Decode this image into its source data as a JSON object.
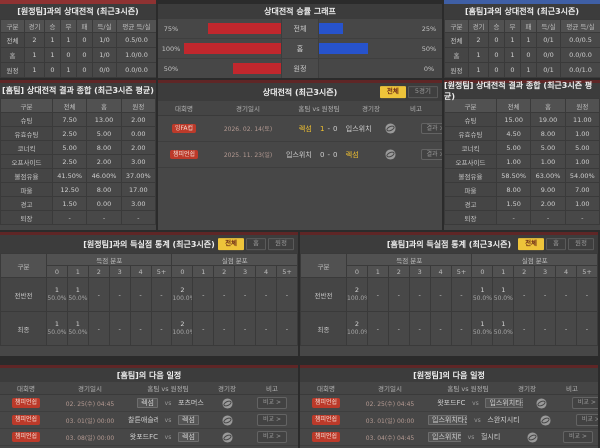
{
  "meta": {
    "vs_label": "vs",
    "score_sep": "-"
  },
  "chart_data": {
    "type": "bar",
    "title": "상대전적 승률 그래프",
    "categories": [
      "전체",
      "홈",
      "원정"
    ],
    "series": [
      {
        "name": "홈팀 승률",
        "color": "#c1272d",
        "values": [
          75,
          100,
          50
        ]
      },
      {
        "name": "원정팀 승률",
        "color": "#2753cc",
        "values": [
          25,
          50,
          0
        ]
      }
    ],
    "value_suffix": "%",
    "xlim": [
      0,
      100
    ],
    "legend_position": "none",
    "grid": false
  },
  "panels": {
    "record_vs_away": {
      "title": "[원정팀]과의 상대전적 (최근3시즌)",
      "accent": "#8e3232",
      "columns": [
        "구분",
        "경기",
        "승",
        "무",
        "패",
        "득/실",
        "평균 득/실"
      ],
      "rows": [
        [
          "전체",
          "2",
          "1",
          "1",
          "0",
          "1/0",
          "0.5/0.0"
        ],
        [
          "홈",
          "1",
          "1",
          "0",
          "0",
          "1/0",
          "1.0/0.0"
        ],
        [
          "원정",
          "1",
          "0",
          "1",
          "0",
          "0/0",
          "0.0/0.0"
        ]
      ]
    },
    "record_vs_home": {
      "title": "[홈팀]과의 상대전적 (최근3시즌)",
      "accent": "#3f5fa5",
      "columns": [
        "구분",
        "경기",
        "승",
        "무",
        "패",
        "득/실",
        "평균 득/실"
      ],
      "rows": [
        [
          "전체",
          "2",
          "0",
          "1",
          "1",
          "0/1",
          "0.0/0.5"
        ],
        [
          "홈",
          "1",
          "0",
          "1",
          "0",
          "0/0",
          "0.0/0.0"
        ],
        [
          "원정",
          "1",
          "0",
          "0",
          "1",
          "0/1",
          "0.0/1.0"
        ]
      ]
    },
    "summary_home": {
      "title": "[홈팀] 상대전적 결과 종합 (최근3시즌 평균)",
      "accent": "#5f2626",
      "columns": [
        "구분",
        "전체",
        "홈",
        "원정"
      ],
      "rows": [
        [
          "슈팅",
          "7.50",
          "13.00",
          "2.00"
        ],
        [
          "유효슈팅",
          "2.50",
          "5.00",
          "0.00"
        ],
        [
          "코너킥",
          "5.00",
          "8.00",
          "2.00"
        ],
        [
          "오프사이드",
          "2.50",
          "2.00",
          "3.00"
        ],
        [
          "볼점유율",
          "41.50%",
          "46.00%",
          "37.00%"
        ],
        [
          "파울",
          "12.50",
          "8.00",
          "17.00"
        ],
        [
          "경고",
          "1.50",
          "0.00",
          "3.00"
        ],
        [
          "퇴장",
          "-",
          "-",
          "-"
        ]
      ]
    },
    "summary_away": {
      "title": "[원정팀] 상대전적 결과 종합 (최근3시즌 평균)",
      "accent": "#5f2626",
      "columns": [
        "구분",
        "전체",
        "홈",
        "원정"
      ],
      "rows": [
        [
          "슈팅",
          "15.00",
          "19.00",
          "11.00"
        ],
        [
          "유효슈팅",
          "4.50",
          "8.00",
          "1.00"
        ],
        [
          "코너킥",
          "5.00",
          "5.00",
          "5.00"
        ],
        [
          "오프사이드",
          "1.00",
          "1.00",
          "1.00"
        ],
        [
          "볼점유율",
          "58.50%",
          "63.00%",
          "54.00%"
        ],
        [
          "파울",
          "8.00",
          "9.00",
          "7.00"
        ],
        [
          "경고",
          "1.50",
          "2.00",
          "1.00"
        ],
        [
          "퇴장",
          "-",
          "-",
          "-"
        ]
      ]
    },
    "h2h_matches": {
      "title": "상대전적 (최근3시즌)",
      "accent": "#5f2626",
      "tabs": [
        "전체",
        "5경기"
      ],
      "active_tab": 0,
      "columns": [
        "대회명",
        "경기일시",
        "홈팀 vs 원정팀",
        "경기장",
        "비고"
      ],
      "action_label": "결과 >",
      "rows": [
        {
          "league": "잉FA컵",
          "date": "2026. 02. 14(토)",
          "home": "렉섬",
          "away": "입스위치타운",
          "home_score": "1",
          "away_score": "0",
          "hl_team": "home",
          "hl_score": "home"
        },
        {
          "league": "챔피언쉽",
          "date": "2025. 11. 23(일)",
          "home": "입스위치타운",
          "away": "렉섬",
          "home_score": "0",
          "away_score": "0",
          "hl_team": "away",
          "hl_score": "none"
        }
      ]
    },
    "goal_stats_vs_away": {
      "title": "[원정팀]과의 득실점 통계 (최근3시즌)",
      "accent": "#5f2626",
      "tabs": [
        "전체",
        "홈",
        "원정"
      ],
      "active_tab": 0,
      "corner_label": "구분",
      "group_labels": [
        "득점 분포",
        "실점 분포"
      ],
      "bins": [
        "0",
        "1",
        "2",
        "3",
        "4",
        "5+"
      ],
      "rows": [
        {
          "label": "전반전",
          "scored": [
            {
              "n": "1",
              "p": "50.0%"
            },
            {
              "n": "1",
              "p": "50.0%"
            },
            "-",
            "-",
            "-",
            "-"
          ],
          "conceded": [
            {
              "n": "2",
              "p": "100.0%"
            },
            "-",
            "-",
            "-",
            "-",
            "-"
          ]
        },
        {
          "label": "최종",
          "scored": [
            {
              "n": "1",
              "p": "50.0%"
            },
            {
              "n": "1",
              "p": "50.0%"
            },
            "-",
            "-",
            "-",
            "-"
          ],
          "conceded": [
            {
              "n": "2",
              "p": "100.0%"
            },
            "-",
            "-",
            "-",
            "-",
            "-"
          ]
        }
      ]
    },
    "goal_stats_vs_home": {
      "title": "[홈팀]과의 득실점 통계 (최근3시즌)",
      "accent": "#5f2626",
      "tabs": [
        "전체",
        "홈",
        "원정"
      ],
      "active_tab": 0,
      "corner_label": "구분",
      "group_labels": [
        "득점 분포",
        "실점 분포"
      ],
      "bins": [
        "0",
        "1",
        "2",
        "3",
        "4",
        "5+"
      ],
      "rows": [
        {
          "label": "전반전",
          "scored": [
            {
              "n": "2",
              "p": "100.0%"
            },
            "-",
            "-",
            "-",
            "-",
            "-"
          ],
          "conceded": [
            {
              "n": "1",
              "p": "50.0%"
            },
            {
              "n": "1",
              "p": "50.0%"
            },
            "-",
            "-",
            "-",
            "-"
          ]
        },
        {
          "label": "최종",
          "scored": [
            {
              "n": "2",
              "p": "100.0%"
            },
            "-",
            "-",
            "-",
            "-",
            "-"
          ],
          "conceded": [
            {
              "n": "1",
              "p": "50.0%"
            },
            {
              "n": "1",
              "p": "50.0%"
            },
            "-",
            "-",
            "-",
            "-"
          ]
        }
      ]
    },
    "schedule_home": {
      "title": "[홈팀]의 다음 일정",
      "accent": "#5f2626",
      "columns": [
        "대회명",
        "경기일시",
        "홈팀 vs 원정팀",
        "경기장",
        "비고"
      ],
      "action_label": "비교 >",
      "rows": [
        {
          "league": "챔피언쉽",
          "date": "02. 25(수) 04:45",
          "home": "렉섬",
          "away": "포츠머스",
          "hl": "home"
        },
        {
          "league": "챔피언쉽",
          "date": "03. 01(일) 00:00",
          "home": "찰튼애슬레틱",
          "away": "렉섬",
          "hl": "away"
        },
        {
          "league": "챔피언쉽",
          "date": "03. 08(일) 00:00",
          "home": "왓포드FC",
          "away": "렉섬",
          "hl": "away"
        }
      ]
    },
    "schedule_away": {
      "title": "[원정팀]의 다음 일정",
      "accent": "#5f2626",
      "columns": [
        "대회명",
        "경기일시",
        "홈팀 vs 원정팀",
        "경기장",
        "비고"
      ],
      "action_label": "비교 >",
      "rows": [
        {
          "league": "챔피언쉽",
          "date": "02. 25(수) 04:45",
          "home": "왓포드FC",
          "away": "입스위치타운",
          "hl": "away"
        },
        {
          "league": "챔피언쉽",
          "date": "03. 01(일) 00:00",
          "home": "입스위치타운",
          "away": "스완지시티",
          "hl": "home"
        },
        {
          "league": "챔피언쉽",
          "date": "03. 04(수) 04:45",
          "home": "입스위치타운",
          "away": "헐시티",
          "hl": "home"
        }
      ]
    }
  }
}
